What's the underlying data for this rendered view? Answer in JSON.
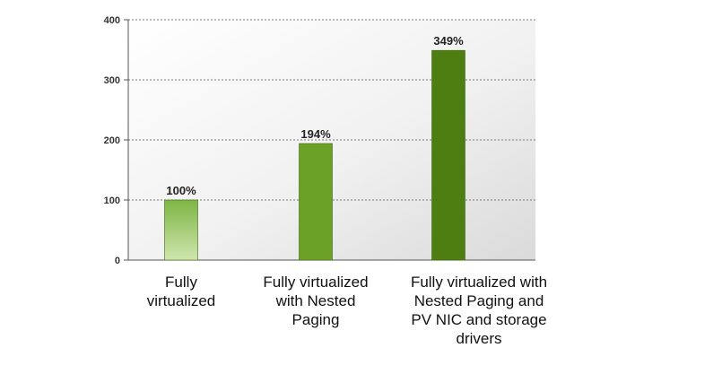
{
  "chart_data": {
    "type": "bar",
    "title": "",
    "xlabel": "",
    "ylabel": "",
    "categories": [
      "Fully\nvirtualized",
      "Fully virtualized\nwith Nested\nPaging",
      "Fully virtualized with\nNested Paging and\nPV NIC and storage\ndrivers"
    ],
    "values": [
      100,
      194,
      349
    ],
    "data_labels": [
      "100%",
      "194%",
      "349%"
    ],
    "ylim": [
      0,
      400
    ],
    "yticks": [
      0,
      100,
      200,
      300,
      400
    ],
    "grid": true,
    "legend": "none",
    "colors": {
      "plot_background": "#e7e7e7",
      "gridline": "#777777",
      "bar_1_top": "#7db544",
      "bar_1_bottom": "#cfe6ad",
      "bar_2": "#6aa126",
      "bar_3": "#4e7e12"
    }
  }
}
